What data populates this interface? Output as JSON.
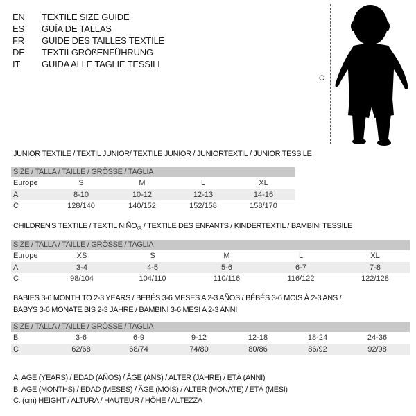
{
  "languages": [
    {
      "code": "EN",
      "label": "TEXTILE SIZE GUIDE"
    },
    {
      "code": "ES",
      "label": "GUÍA DE TALLAS"
    },
    {
      "code": "FR",
      "label": "GUIDE DES TAILLES TEXTILE"
    },
    {
      "code": "DE",
      "label": "TEXTILGRÖßENFÜHRUNG"
    },
    {
      "code": "IT",
      "label": "GUIDA ALLE TAGLIE TESSILI"
    }
  ],
  "figure": {
    "measure_label": "C",
    "icon": "child-silhouette"
  },
  "size_header": "SIZE / TALLA / TAILLE / GRÖSSE / TAGLIA",
  "junior": {
    "title": "JUNIOR TEXTILE / TEXTIL JUNIOR/ TEXTILE JUNIOR / JUNIORTEXTIL / JUNIOR TESSILE",
    "rows": [
      {
        "label": "Europe",
        "values": [
          "S",
          "M",
          "L",
          "XL"
        ]
      },
      {
        "label": "A",
        "values": [
          "8-10",
          "10-12",
          "12-13",
          "14-16"
        ]
      },
      {
        "label": "C",
        "values": [
          "128/140",
          "140/152",
          "152/158",
          "158/170"
        ]
      }
    ]
  },
  "children": {
    "title": "CHILDREN'S TEXTILE / TEXTIL NIÑO/A / TEXTILE DES ENFANTS / KINDERTEXTIL / BAMBINI TESSILE",
    "rows": [
      {
        "label": "Europe",
        "values": [
          "XS",
          "S",
          "M",
          "L",
          "XL"
        ]
      },
      {
        "label": "A",
        "values": [
          "3-4",
          "4-5",
          "5-6",
          "6-7",
          "7-8"
        ]
      },
      {
        "label": "C",
        "values": [
          "98/104",
          "104/110",
          "110/116",
          "116/122",
          "122/128"
        ]
      }
    ]
  },
  "babies": {
    "title_line1": "BABIES 3-6 MONTH TO 2-3 YEARS / BEBÉS 3-6 MESES A 2-3 AÑOS / BÉBÉS 3-6 MOIS À 2-3 ANS /",
    "title_line2": "BABYS 3-6 MONATE BIS 2-3 JAHRE / BAMBINI 3-6 MESI A 2-3 ANNI",
    "rows": [
      {
        "label": "B",
        "values": [
          "3-6",
          "6-9",
          "9-12",
          "12-18",
          "18-24",
          "24-36"
        ]
      },
      {
        "label": "C",
        "values": [
          "62/68",
          "68/74",
          "74/80",
          "80/86",
          "86/92",
          "92/98"
        ]
      }
    ]
  },
  "legend": [
    "A. AGE (YEARS) / EDAD (AÑOS) / ÂGE (ANS) / ALTER (JAHRE) / ETÀ (ANNI)",
    "B. AGE (MONTHS) / EDAD (MESES) / ÂGE (MOIS) / ALTER (MONATE) / ETÀ (MESI)",
    "C. (cm) HEIGHT / ALTURA / HAUTEUR / HÖHE / ALTEZZA"
  ]
}
